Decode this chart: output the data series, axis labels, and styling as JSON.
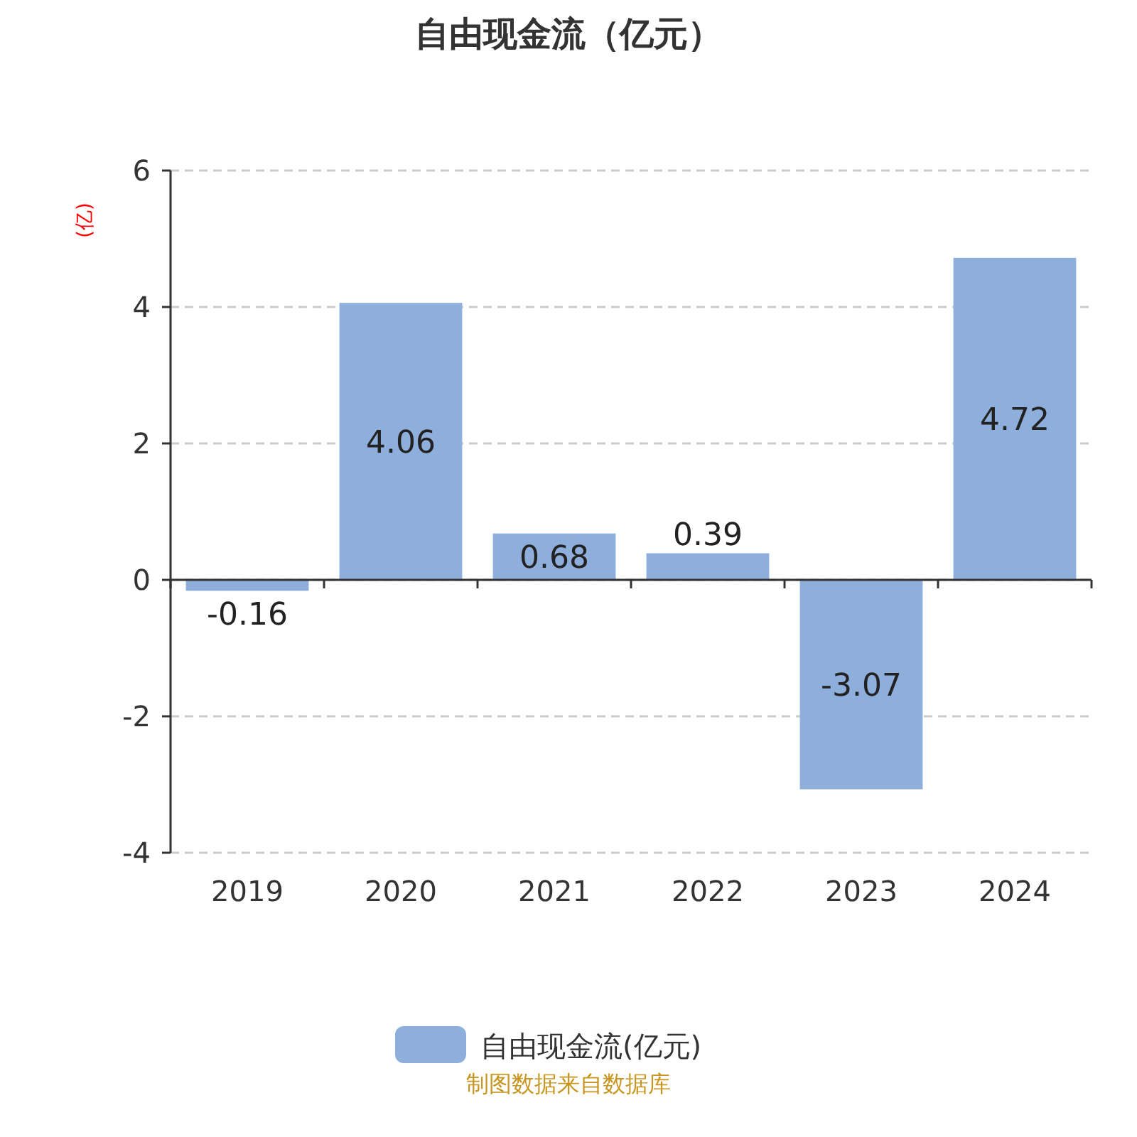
{
  "chart_data": {
    "type": "bar",
    "title": "自由现金流（亿元）",
    "ylabel": "(亿)",
    "categories": [
      "2019",
      "2020",
      "2021",
      "2022",
      "2023",
      "2024"
    ],
    "series": [
      {
        "name": "自由现金流(亿元)",
        "color": "#8eaedb",
        "values": [
          -0.16,
          4.06,
          0.68,
          0.39,
          -3.07,
          4.72
        ]
      }
    ],
    "ylim": [
      -4,
      6
    ],
    "yticks": [
      -4,
      -2,
      0,
      2,
      4,
      6
    ],
    "grid": "y",
    "legend": "bottom",
    "data_labels": true,
    "annotations": [
      "制图数据来自数据库"
    ]
  }
}
